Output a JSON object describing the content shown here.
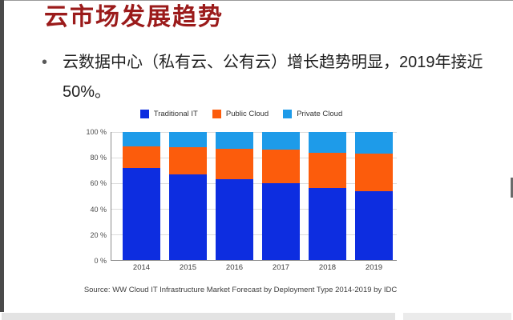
{
  "slide": {
    "title": "云市场发展趋势",
    "bullet": {
      "marker": "•",
      "text": "云数据中心（私有云、公有云）增长趋势明显，2019年接近50%。"
    },
    "source": "Source: WW Cloud IT Infrastructure Market Forecast by Deployment Type 2014-2019 by IDC"
  },
  "chart_data": {
    "type": "bar",
    "stacked": true,
    "title": "",
    "xlabel": "",
    "ylabel": "",
    "categories": [
      "2014",
      "2015",
      "2016",
      "2017",
      "2018",
      "2019"
    ],
    "series": [
      {
        "name": "Traditional IT",
        "color": "#0d2de0",
        "values": [
          72,
          67,
          63,
          60,
          56,
          54
        ]
      },
      {
        "name": "Public Cloud",
        "color": "#fc5c0c",
        "values": [
          17,
          21,
          24,
          26,
          28,
          29
        ]
      },
      {
        "name": "Private Cloud",
        "color": "#1e9be9",
        "values": [
          11,
          12,
          13,
          14,
          16,
          17
        ]
      }
    ],
    "ylim": [
      0,
      100
    ],
    "y_ticks": [
      "100 %",
      "80 %",
      "60 %",
      "40 %",
      "20 %",
      "0 %"
    ],
    "legend_position": "top",
    "grid": true
  },
  "colors": {
    "title": "#9b1b1b",
    "body_text": "#1f1f1f",
    "grid": "#dcdcdc",
    "axis": "#8c8c8c"
  }
}
